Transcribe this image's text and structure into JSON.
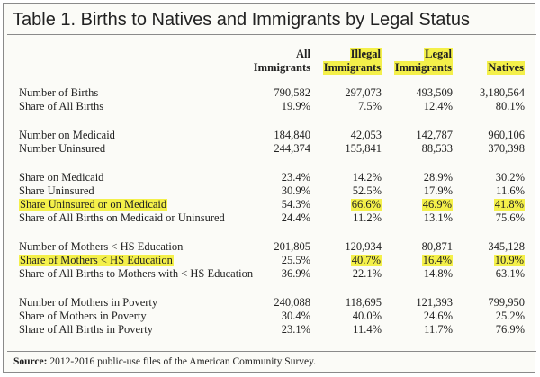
{
  "title": "Table 1. Births to Natives and Immigrants by Legal Status",
  "highlight_color": "#f4f04a",
  "columns": [
    {
      "line1": "All",
      "line2": "Immigrants",
      "highlighted": false
    },
    {
      "line1": "Illegal",
      "line2": "Immigrants",
      "highlighted": true
    },
    {
      "line1": "Legal",
      "line2": "Immigrants",
      "highlighted": true
    },
    {
      "line1": "",
      "line2": "Natives",
      "highlighted": true
    }
  ],
  "rows": [
    {
      "label": "Number of Births",
      "values": [
        "790,582",
        "297,073",
        "493,509",
        "3,180,564"
      ],
      "highlighted": false
    },
    {
      "label": "Share of All Births",
      "values": [
        "19.9%",
        "7.5%",
        "12.4%",
        "80.1%"
      ],
      "highlighted": false
    },
    {
      "label": "Number on Medicaid",
      "values": [
        "184,840",
        "42,053",
        "142,787",
        "960,106"
      ],
      "highlighted": false
    },
    {
      "label": "Number Uninsured",
      "values": [
        "244,374",
        "155,841",
        "88,533",
        "370,398"
      ],
      "highlighted": false
    },
    {
      "label": "Share on Medicaid",
      "values": [
        "23.4%",
        "14.2%",
        "28.9%",
        "30.2%"
      ],
      "highlighted": false
    },
    {
      "label": "Share Uninsured",
      "values": [
        "30.9%",
        "52.5%",
        "17.9%",
        "11.6%"
      ],
      "highlighted": false
    },
    {
      "label": "Share Uninsured or on Medicaid",
      "values": [
        "54.3%",
        "66.6%",
        "46.9%",
        "41.8%"
      ],
      "highlighted": true
    },
    {
      "label": "Share of All Births on Medicaid or Uninsured",
      "values": [
        "24.4%",
        "11.2%",
        "13.1%",
        "75.6%"
      ],
      "highlighted": false
    },
    {
      "label": "Number of Mothers < HS Education",
      "values": [
        "201,805",
        "120,934",
        "80,871",
        "345,128"
      ],
      "highlighted": false
    },
    {
      "label": "Share of Mothers < HS Education",
      "values": [
        "25.5%",
        "40.7%",
        "16.4%",
        "10.9%"
      ],
      "highlighted": true
    },
    {
      "label": "Share of All Births to Mothers with < HS Education",
      "values": [
        "36.9%",
        "22.1%",
        "14.8%",
        "63.1%"
      ],
      "highlighted": false
    },
    {
      "label": "Number of Mothers in Poverty",
      "values": [
        "240,088",
        "118,695",
        "121,393",
        "799,950"
      ],
      "highlighted": false
    },
    {
      "label": "Share of Mothers in Poverty",
      "values": [
        "30.4%",
        "40.0%",
        "24.6%",
        "25.2%"
      ],
      "highlighted": false
    },
    {
      "label": "Share of All Births in Poverty",
      "values": [
        "23.1%",
        "11.4%",
        "11.7%",
        "76.9%"
      ],
      "highlighted": false
    }
  ],
  "source": {
    "label": "Source:",
    "text": " 2012-2016 public-use files of the American Community Survey."
  }
}
